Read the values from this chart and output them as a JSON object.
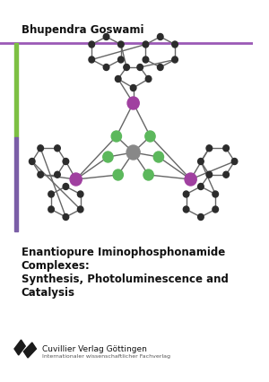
{
  "bg_color": "#ffffff",
  "author": "Bhupendra Goswami",
  "title_line1": "Enantiopure Iminophosphonamide",
  "title_line2": "Complexes:",
  "title_line3": "Synthesis, Photoluminescence and",
  "title_line4": "Catalysis",
  "publisher": "Cuvillier Verlag Göttingen",
  "publisher_sub": "Internationaler wissenschaftlicher Fachverlag",
  "bar_purple": "#7b5ea7",
  "bar_green": "#7dc043",
  "sep_line_color": "#9b59b6",
  "node_dark": "#2c2c2c",
  "node_green": "#5cb85c",
  "node_purple": "#a040a0",
  "node_gray": "#888888",
  "edge_color": "#666666",
  "text_color": "#111111",
  "sub_text_color": "#555555"
}
